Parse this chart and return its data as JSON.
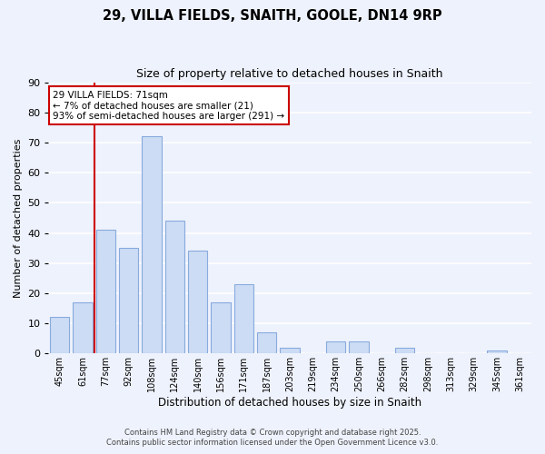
{
  "title": "29, VILLA FIELDS, SNAITH, GOOLE, DN14 9RP",
  "subtitle": "Size of property relative to detached houses in Snaith",
  "xlabel": "Distribution of detached houses by size in Snaith",
  "ylabel": "Number of detached properties",
  "bar_color": "#ccdcf5",
  "bar_edge_color": "#88aadd",
  "background_color": "#eef2fc",
  "grid_color": "#ffffff",
  "bins": [
    "45sqm",
    "61sqm",
    "77sqm",
    "92sqm",
    "108sqm",
    "124sqm",
    "140sqm",
    "156sqm",
    "171sqm",
    "187sqm",
    "203sqm",
    "219sqm",
    "234sqm",
    "250sqm",
    "266sqm",
    "282sqm",
    "298sqm",
    "313sqm",
    "329sqm",
    "345sqm",
    "361sqm"
  ],
  "values": [
    12,
    17,
    41,
    35,
    72,
    44,
    34,
    17,
    23,
    7,
    2,
    0,
    4,
    4,
    0,
    2,
    0,
    0,
    0,
    1,
    0
  ],
  "ylim": [
    0,
    90
  ],
  "yticks": [
    0,
    10,
    20,
    30,
    40,
    50,
    60,
    70,
    80,
    90
  ],
  "vline_color": "#cc0000",
  "vline_bin_index": 2,
  "annotation_line1": "29 VILLA FIELDS: 71sqm",
  "annotation_line2": "← 7% of detached houses are smaller (21)",
  "annotation_line3": "93% of semi-detached houses are larger (291) →",
  "footer_line1": "Contains HM Land Registry data © Crown copyright and database right 2025.",
  "footer_line2": "Contains public sector information licensed under the Open Government Licence v3.0."
}
